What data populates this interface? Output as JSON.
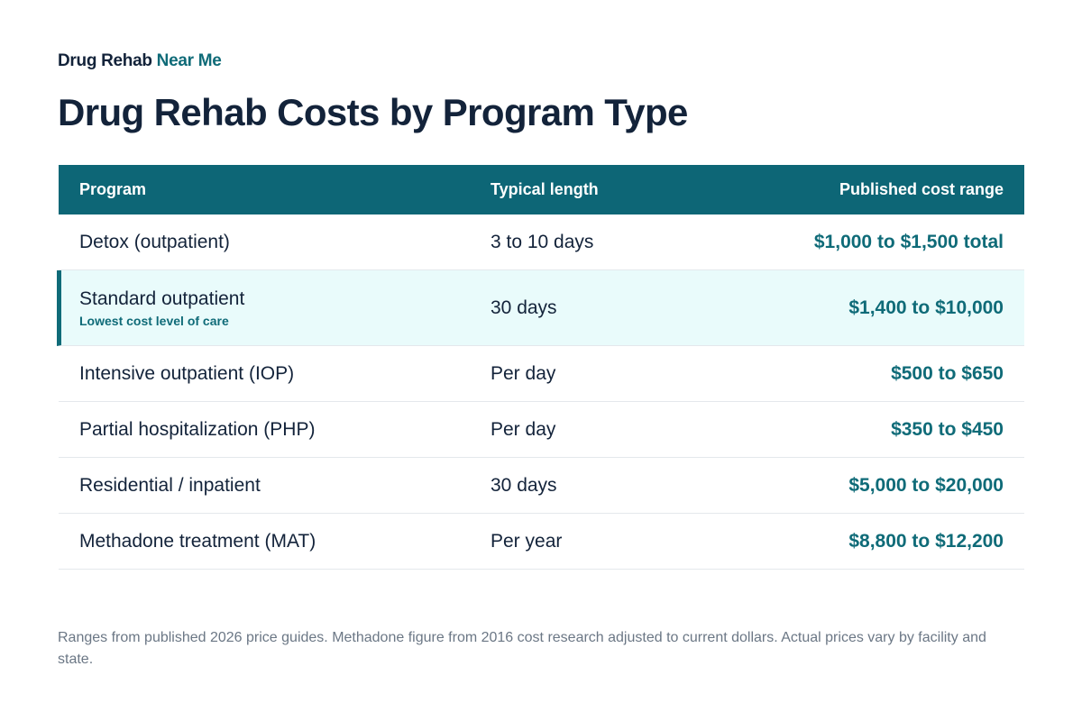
{
  "brand": {
    "part1": "Drug Rehab",
    "part2": "Near Me"
  },
  "title": "Drug Rehab Costs by Program Type",
  "table": {
    "headers": [
      "Program",
      "Typical length",
      "Published cost range"
    ],
    "rows": [
      {
        "program": "Detox (outpatient)",
        "note": "",
        "length": "3 to 10 days",
        "cost": "$1,000 to $1,500 total"
      },
      {
        "program": "Standard outpatient",
        "note": "Lowest cost level of care",
        "length": "30 days",
        "cost": "$1,400 to $10,000"
      },
      {
        "program": "Intensive outpatient (IOP)",
        "note": "",
        "length": "Per day",
        "cost": "$500 to $650"
      },
      {
        "program": "Partial hospitalization (PHP)",
        "note": "",
        "length": "Per day",
        "cost": "$350 to $450"
      },
      {
        "program": "Residential / inpatient",
        "note": "",
        "length": "30 days",
        "cost": "$5,000 to $20,000"
      },
      {
        "program": "Methadone treatment (MAT)",
        "note": "",
        "length": "Per year",
        "cost": "$8,800 to $12,200"
      }
    ]
  },
  "footnote": "Ranges from published 2026 price guides. Methadone figure from 2016 cost research adjusted to current dollars. Actual prices vary by facility and state.",
  "colors": {
    "header_bg": "#0d6676",
    "accent": "#0f6b78",
    "highlight_bg": "#e9fbfb"
  }
}
